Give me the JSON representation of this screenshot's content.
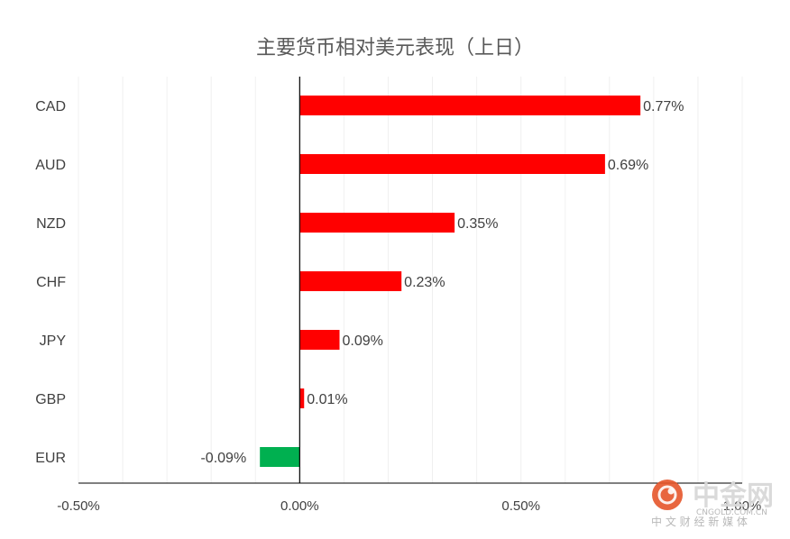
{
  "chart_data": {
    "type": "bar",
    "orientation": "horizontal",
    "title": "主要货币相对美元表现（上日）",
    "categories": [
      "CAD",
      "AUD",
      "NZD",
      "CHF",
      "JPY",
      "GBP",
      "EUR"
    ],
    "values": [
      0.77,
      0.69,
      0.35,
      0.23,
      0.09,
      0.01,
      -0.09
    ],
    "data_labels": [
      "0.77%",
      "0.69%",
      "0.35%",
      "0.23%",
      "0.09%",
      "0.01%",
      "-0.09%"
    ],
    "xlim": [
      -0.5,
      1.0
    ],
    "xticks": [
      {
        "value": -0.5,
        "label": "-0.50%"
      },
      {
        "value": 0.0,
        "label": "0.00%"
      },
      {
        "value": 0.5,
        "label": "0.50%"
      },
      {
        "value": 1.0,
        "label": "1.00%"
      }
    ],
    "grid": true,
    "colors": {
      "positive": "#ff0000",
      "negative": "#00b050",
      "grid": "#f0f0f0",
      "axis": "#000000"
    }
  },
  "watermark": {
    "logo": "中金网",
    "domain": "CNGOLD.COM.CN",
    "tagline": "中 文 财 经 新 媒 体",
    "colors": {
      "logo": "#e5552a",
      "text": "#b8b8b8"
    }
  }
}
